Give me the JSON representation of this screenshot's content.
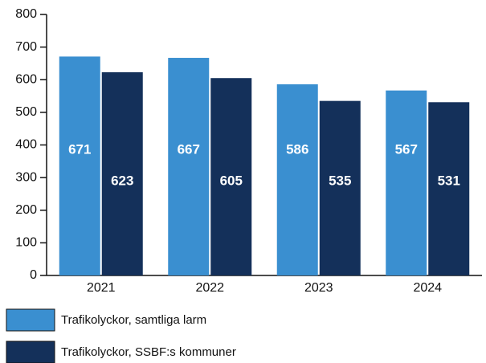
{
  "chart_data": {
    "type": "bar",
    "categories": [
      "2021",
      "2022",
      "2023",
      "2024"
    ],
    "series": [
      {
        "name": "Trafikolyckor, samtliga larm",
        "color": "#3a8fd0",
        "values": [
          671,
          667,
          586,
          567
        ]
      },
      {
        "name": "Trafikolyckor, SSBF:s kommuner",
        "color": "#14305a",
        "values": [
          623,
          605,
          535,
          531
        ]
      }
    ],
    "ylim": [
      0,
      800
    ],
    "yticks": [
      0,
      100,
      200,
      300,
      400,
      500,
      600,
      700,
      800
    ]
  }
}
